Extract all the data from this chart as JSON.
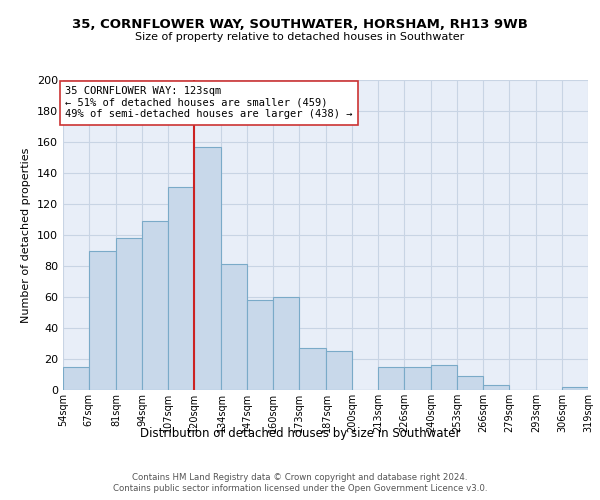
{
  "title": "35, CORNFLOWER WAY, SOUTHWATER, HORSHAM, RH13 9WB",
  "subtitle": "Size of property relative to detached houses in Southwater",
  "xlabel": "Distribution of detached houses by size in Southwater",
  "ylabel": "Number of detached properties",
  "bar_color": "#c8d8ea",
  "bar_edge_color": "#7aaac8",
  "vline_x": 120,
  "vline_color": "#cc2222",
  "vline_lw": 1.5,
  "annotation_title": "35 CORNFLOWER WAY: 123sqm",
  "annotation_line1": "← 51% of detached houses are smaller (459)",
  "annotation_line2": "49% of semi-detached houses are larger (438) →",
  "annotation_box_edge": "#cc3333",
  "ylim": [
    0,
    200
  ],
  "yticks": [
    0,
    20,
    40,
    60,
    80,
    100,
    120,
    140,
    160,
    180,
    200
  ],
  "bin_edges": [
    54,
    67,
    81,
    94,
    107,
    120,
    134,
    147,
    160,
    173,
    187,
    200,
    213,
    226,
    240,
    253,
    266,
    279,
    293,
    306,
    319
  ],
  "bin_labels": [
    "54sqm",
    "67sqm",
    "81sqm",
    "94sqm",
    "107sqm",
    "120sqm",
    "134sqm",
    "147sqm",
    "160sqm",
    "173sqm",
    "187sqm",
    "200sqm",
    "213sqm",
    "226sqm",
    "240sqm",
    "253sqm",
    "266sqm",
    "279sqm",
    "293sqm",
    "306sqm",
    "319sqm"
  ],
  "bar_heights": [
    15,
    90,
    98,
    109,
    131,
    157,
    81,
    58,
    60,
    27,
    25,
    0,
    15,
    15,
    16,
    9,
    3,
    0,
    0,
    2
  ],
  "footer1": "Contains HM Land Registry data © Crown copyright and database right 2024.",
  "footer2": "Contains public sector information licensed under the Open Government Licence v3.0.",
  "grid_color": "#c8d4e4",
  "bg_color": "#e8eef8"
}
